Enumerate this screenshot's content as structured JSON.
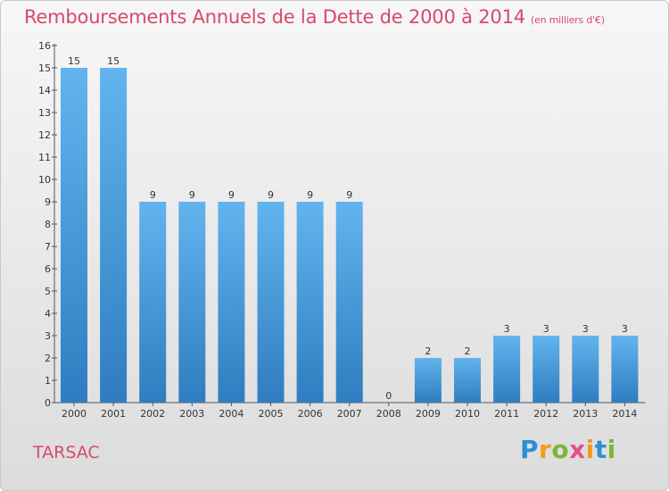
{
  "title": "Remboursements Annuels de la Dette de 2000 à 2014",
  "unit": "(en milliers d'€)",
  "commune": "TARSAC",
  "logo": {
    "letters": [
      "P",
      "r",
      "o",
      "x",
      "i",
      "t",
      "i"
    ],
    "colors": [
      "#2b8fd6",
      "#f39a1f",
      "#7db43a",
      "#e94f8a",
      "#f39a1f",
      "#2b8fd6",
      "#7db43a"
    ]
  },
  "colors": {
    "title": "#d8496a",
    "bar_top": "#62b4ee",
    "bar_bottom": "#2f7dc0"
  },
  "chart_data": {
    "type": "bar",
    "title": "Remboursements Annuels de la Dette de 2000 à 2014",
    "categories": [
      "2000",
      "2001",
      "2002",
      "2003",
      "2004",
      "2005",
      "2006",
      "2007",
      "2008",
      "2009",
      "2010",
      "2011",
      "2012",
      "2013",
      "2014"
    ],
    "values": [
      15,
      15,
      9,
      9,
      9,
      9,
      9,
      9,
      0,
      2,
      2,
      3,
      3,
      3,
      3
    ],
    "ylim": [
      0,
      16
    ],
    "yticks": [
      0,
      1,
      2,
      3,
      4,
      5,
      6,
      7,
      8,
      9,
      10,
      11,
      12,
      13,
      14,
      15,
      16
    ],
    "grid": false,
    "data_labels": true
  }
}
